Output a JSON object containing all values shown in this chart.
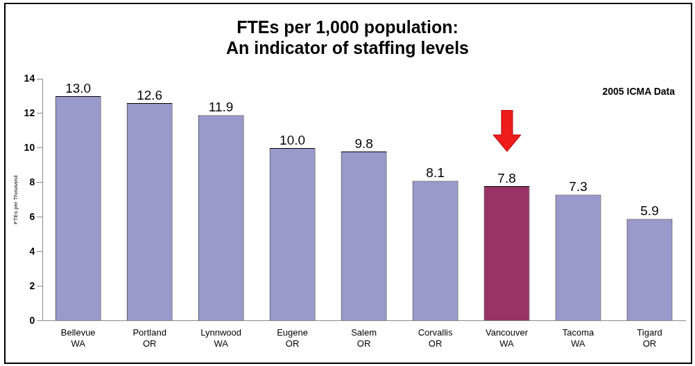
{
  "chart_data": {
    "type": "bar",
    "title": "FTEs per 1,000 population:\nAn indicator of staffing levels",
    "ylabel": "FTEs per Thousand",
    "categories": [
      "Bellevue\nWA",
      "Portland\nOR",
      "Lynnwood\nWA",
      "Eugene\nOR",
      "Salem\nOR",
      "Corvallis\nOR",
      "Vancouver\nWA",
      "Tacoma\nWA",
      "Tigard\nOR"
    ],
    "values": [
      13.0,
      12.6,
      11.9,
      10.0,
      9.8,
      8.1,
      7.8,
      7.3,
      5.9
    ],
    "value_labels": [
      "13.0",
      "12.6",
      "11.9",
      "10.0",
      "9.8",
      "8.1",
      "7.8",
      "7.3",
      "5.9"
    ],
    "colors": [
      "#9999cc",
      "#9999cc",
      "#9999cc",
      "#9999cc",
      "#9999cc",
      "#9999cc",
      "#993366",
      "#9999cc",
      "#9999cc"
    ],
    "ylim": [
      0,
      14
    ],
    "yticks": [
      0,
      2,
      4,
      6,
      8,
      10,
      12,
      14
    ],
    "grid": false,
    "legend": false,
    "annotations": [
      "2005 ICMA Data"
    ]
  }
}
